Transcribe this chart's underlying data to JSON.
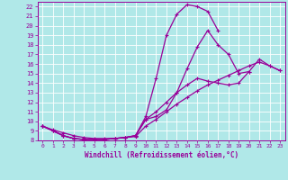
{
  "xlabel": "Windchill (Refroidissement éolien,°C)",
  "bg_color": "#b0e8e8",
  "grid_color": "#ffffff",
  "line_color": "#990099",
  "xlim": [
    -0.5,
    23.5
  ],
  "ylim": [
    8,
    22.5
  ],
  "xticks": [
    0,
    1,
    2,
    3,
    4,
    5,
    6,
    7,
    8,
    9,
    10,
    11,
    12,
    13,
    14,
    15,
    16,
    17,
    18,
    19,
    20,
    21,
    22,
    23
  ],
  "yticks": [
    8,
    9,
    10,
    11,
    12,
    13,
    14,
    15,
    16,
    17,
    18,
    19,
    20,
    21,
    22
  ],
  "curve1_x": [
    0,
    1,
    2,
    3,
    4,
    5,
    6,
    7,
    8,
    9,
    10,
    11,
    12,
    13,
    14,
    15,
    16,
    17
  ],
  "curve1_y": [
    9.5,
    9.0,
    8.5,
    8.2,
    8.1,
    8.1,
    8.1,
    8.2,
    8.3,
    8.5,
    10.5,
    14.5,
    19.0,
    21.2,
    22.2,
    22.0,
    21.5,
    19.5
  ],
  "curve2_x": [
    0,
    1,
    2,
    3,
    4,
    5,
    6,
    7,
    8,
    9,
    10,
    11,
    12,
    13,
    14,
    15,
    16,
    17,
    18,
    19,
    20
  ],
  "curve2_y": [
    9.5,
    9.0,
    8.5,
    8.2,
    8.1,
    8.1,
    8.1,
    8.2,
    8.3,
    8.5,
    10.2,
    10.5,
    11.2,
    13.0,
    15.5,
    17.8,
    19.5,
    18.0,
    17.0,
    15.0,
    15.2
  ],
  "curve3_x": [
    0,
    1,
    2,
    3,
    4,
    5,
    6,
    7,
    8,
    9,
    10,
    11,
    12,
    13,
    14,
    15,
    16,
    17,
    18,
    19,
    20,
    21,
    22,
    23
  ],
  "curve3_y": [
    9.5,
    9.0,
    8.5,
    8.2,
    8.1,
    8.1,
    8.1,
    8.2,
    8.3,
    8.5,
    10.2,
    11.0,
    12.0,
    13.0,
    13.8,
    14.5,
    14.2,
    14.0,
    13.8,
    14.0,
    15.2,
    16.5,
    15.8,
    15.3
  ],
  "curve4_x": [
    0,
    1,
    2,
    3,
    4,
    5,
    6,
    7,
    8,
    9,
    10,
    11,
    12,
    13,
    14,
    15,
    16,
    17,
    18,
    19,
    20,
    21,
    22,
    23
  ],
  "curve4_y": [
    9.5,
    9.1,
    8.8,
    8.5,
    8.3,
    8.2,
    8.2,
    8.2,
    8.3,
    8.4,
    9.5,
    10.2,
    11.0,
    11.8,
    12.5,
    13.2,
    13.8,
    14.3,
    14.8,
    15.3,
    15.8,
    16.2,
    15.8,
    15.3
  ]
}
